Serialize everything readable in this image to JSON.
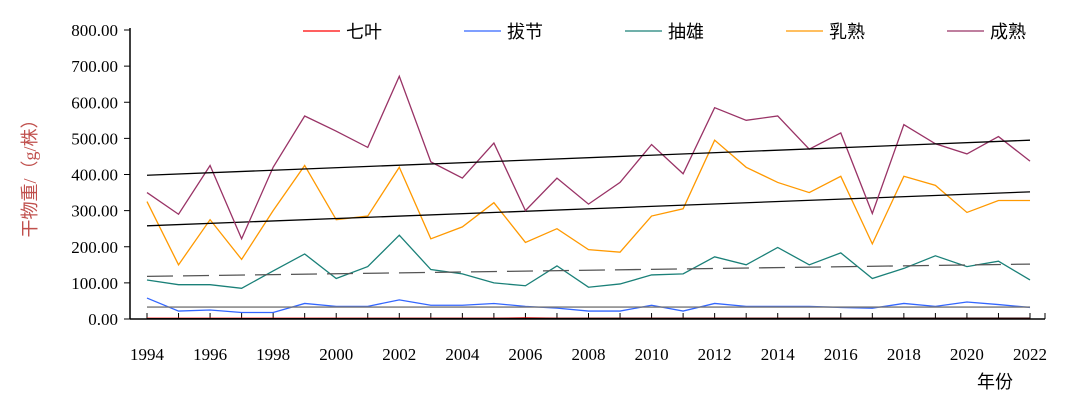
{
  "chart_data": {
    "type": "line",
    "xlabel": "年份",
    "ylabel": "干物重/（g/株）",
    "ylim": [
      0,
      800
    ],
    "yticks": [
      "0.00",
      "100.00",
      "200.00",
      "300.00",
      "400.00",
      "500.00",
      "600.00",
      "700.00",
      "800.00"
    ],
    "xlim": [
      1994,
      2022
    ],
    "xticks": [
      "1994",
      "1996",
      "1998",
      "2000",
      "2002",
      "2004",
      "2006",
      "2008",
      "2010",
      "2012",
      "2014",
      "2016",
      "2018",
      "2020",
      "2022"
    ],
    "legend_position": "top",
    "x": [
      1994,
      1995,
      1996,
      1997,
      1998,
      1999,
      2000,
      2001,
      2002,
      2003,
      2004,
      2005,
      2006,
      2007,
      2008,
      2009,
      2010,
      2011,
      2012,
      2013,
      2014,
      2015,
      2016,
      2017,
      2018,
      2019,
      2020,
      2021,
      2022
    ],
    "series": [
      {
        "name": "七叶",
        "color": "#ff0000",
        "values": [
          2,
          2,
          2,
          2,
          2,
          2,
          2,
          2,
          2,
          2,
          2,
          2,
          3,
          2,
          2,
          2,
          2,
          2,
          2,
          2,
          2,
          2,
          2,
          2,
          2,
          2,
          2,
          2,
          2
        ],
        "trend": [
          1,
          2
        ],
        "trend_style": "solid"
      },
      {
        "name": "拔节",
        "color": "#3366ff",
        "values": [
          58,
          22,
          25,
          18,
          18,
          43,
          35,
          35,
          53,
          38,
          38,
          43,
          35,
          30,
          22,
          22,
          38,
          22,
          43,
          35,
          35,
          35,
          32,
          30,
          43,
          35,
          47,
          40,
          32
        ],
        "trend": [
          33,
          33
        ],
        "trend_style": "solid"
      },
      {
        "name": "抽雄",
        "color": "#1a8078",
        "values": [
          108,
          95,
          95,
          85,
          133,
          180,
          112,
          145,
          232,
          137,
          125,
          100,
          92,
          147,
          88,
          97,
          122,
          125,
          172,
          150,
          198,
          150,
          183,
          112,
          140,
          175,
          145,
          160,
          108
        ],
        "trend": [
          118,
          152
        ],
        "trend_style": "dashed"
      },
      {
        "name": "乳熟",
        "color": "#ff9900",
        "values": [
          325,
          150,
          275,
          165,
          300,
          425,
          275,
          285,
          420,
          222,
          255,
          322,
          212,
          250,
          192,
          185,
          285,
          305,
          495,
          420,
          378,
          350,
          395,
          208,
          395,
          370,
          295,
          328,
          328
        ],
        "trend": [
          258,
          352
        ],
        "trend_style": "solid"
      },
      {
        "name": "成熟",
        "color": "#993366",
        "values": [
          350,
          290,
          425,
          222,
          420,
          562,
          520,
          475,
          672,
          435,
          390,
          487,
          300,
          390,
          318,
          378,
          483,
          402,
          585,
          550,
          562,
          470,
          515,
          292,
          538,
          485,
          457,
          505,
          437
        ],
        "trend": [
          398,
          495
        ],
        "trend_style": "solid"
      }
    ]
  }
}
